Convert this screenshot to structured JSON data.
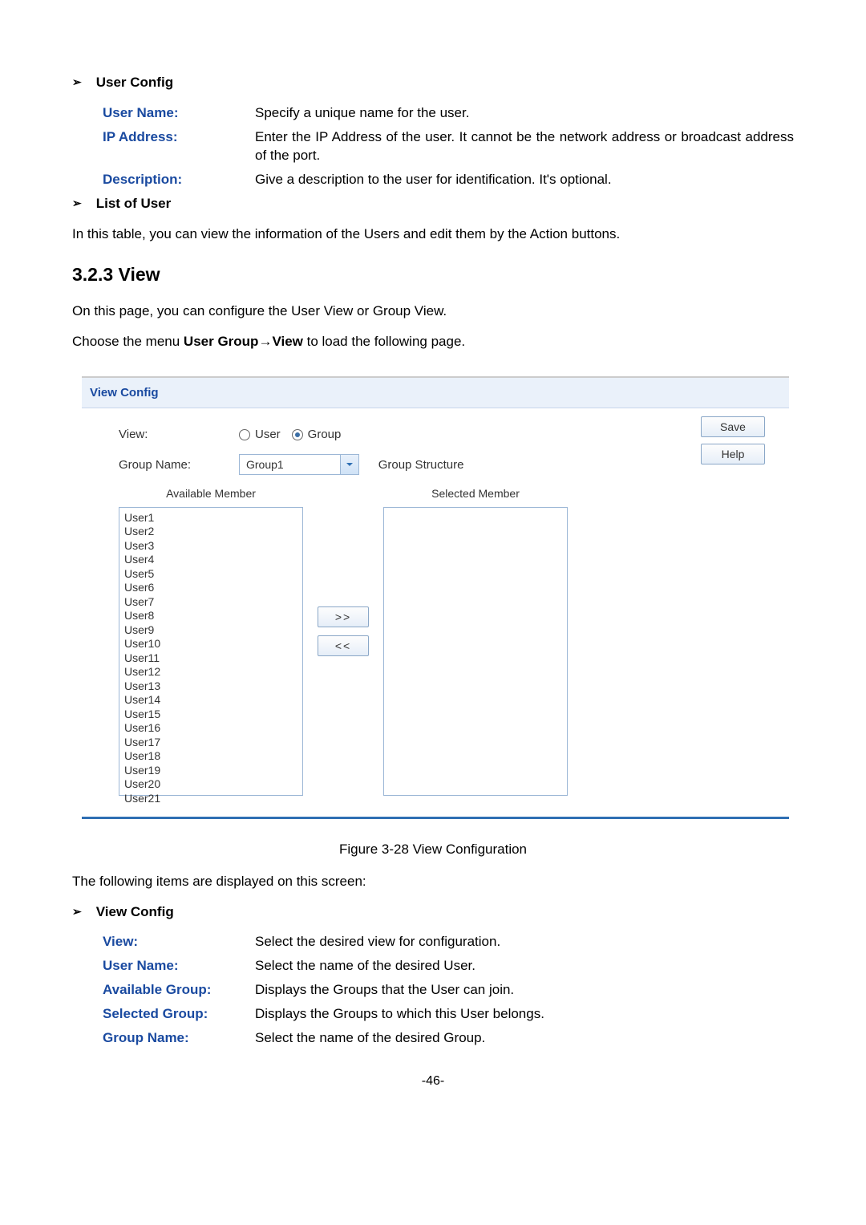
{
  "sec1": {
    "heading": "User Config",
    "rows": [
      {
        "label": "User Name:",
        "text": "Specify a unique name for the user."
      },
      {
        "label": "IP Address:",
        "text": "Enter the IP Address of the user. It cannot be the network address or broadcast address of the port."
      },
      {
        "label": "Description:",
        "text": "Give a description to the user for identification. It's optional."
      }
    ]
  },
  "list_user": {
    "heading": "List of User",
    "para": "In this table, you can view the information of the Users and edit them by the Action buttons."
  },
  "section_view": {
    "number_title": "3.2.3   View",
    "p1": "On this page, you can configure the User View or Group View.",
    "p2_pre": "Choose the menu ",
    "p2_bold": "User Group→View",
    "p2_post": " to load the following page."
  },
  "view_config": {
    "header": "View Config",
    "view_label": "View:",
    "radio_user": "User",
    "radio_group": "Group",
    "group_name_label": "Group Name:",
    "group_name_value": "Group1",
    "group_structure": "Group Structure",
    "save": "Save",
    "help": "Help",
    "available_title": "Available Member",
    "selected_title": "Selected Member",
    "move_right": ">>",
    "move_left": "<<",
    "available_members": [
      "User1",
      "User2",
      "User3",
      "User4",
      "User5",
      "User6",
      "User7",
      "User8",
      "User9",
      "User10",
      "User11",
      "User12",
      "User13",
      "User14",
      "User15",
      "User16",
      "User17",
      "User18",
      "User19",
      "User20",
      "User21"
    ],
    "colors": {
      "header_bg": "#eaf1fa",
      "header_text": "#1a4aa0",
      "border": "#9cb7d6",
      "bottom_rule": "#2f6fb3"
    }
  },
  "fig_caption": "Figure 3-28 View Configuration",
  "following_items": "The following items are displayed on this screen:",
  "sec2": {
    "heading": "View Config",
    "rows": [
      {
        "label": "View:",
        "text": "Select the desired view for configuration."
      },
      {
        "label": "User Name:",
        "text": "Select the name of the desired User."
      },
      {
        "label": "Available Group:",
        "text": "Displays the Groups that the User can join."
      },
      {
        "label": "Selected Group:",
        "text": "Displays the Groups to which this User belongs."
      },
      {
        "label": "Group Name:",
        "text": "Select the name of the desired Group."
      }
    ]
  },
  "page_number": "-46-"
}
